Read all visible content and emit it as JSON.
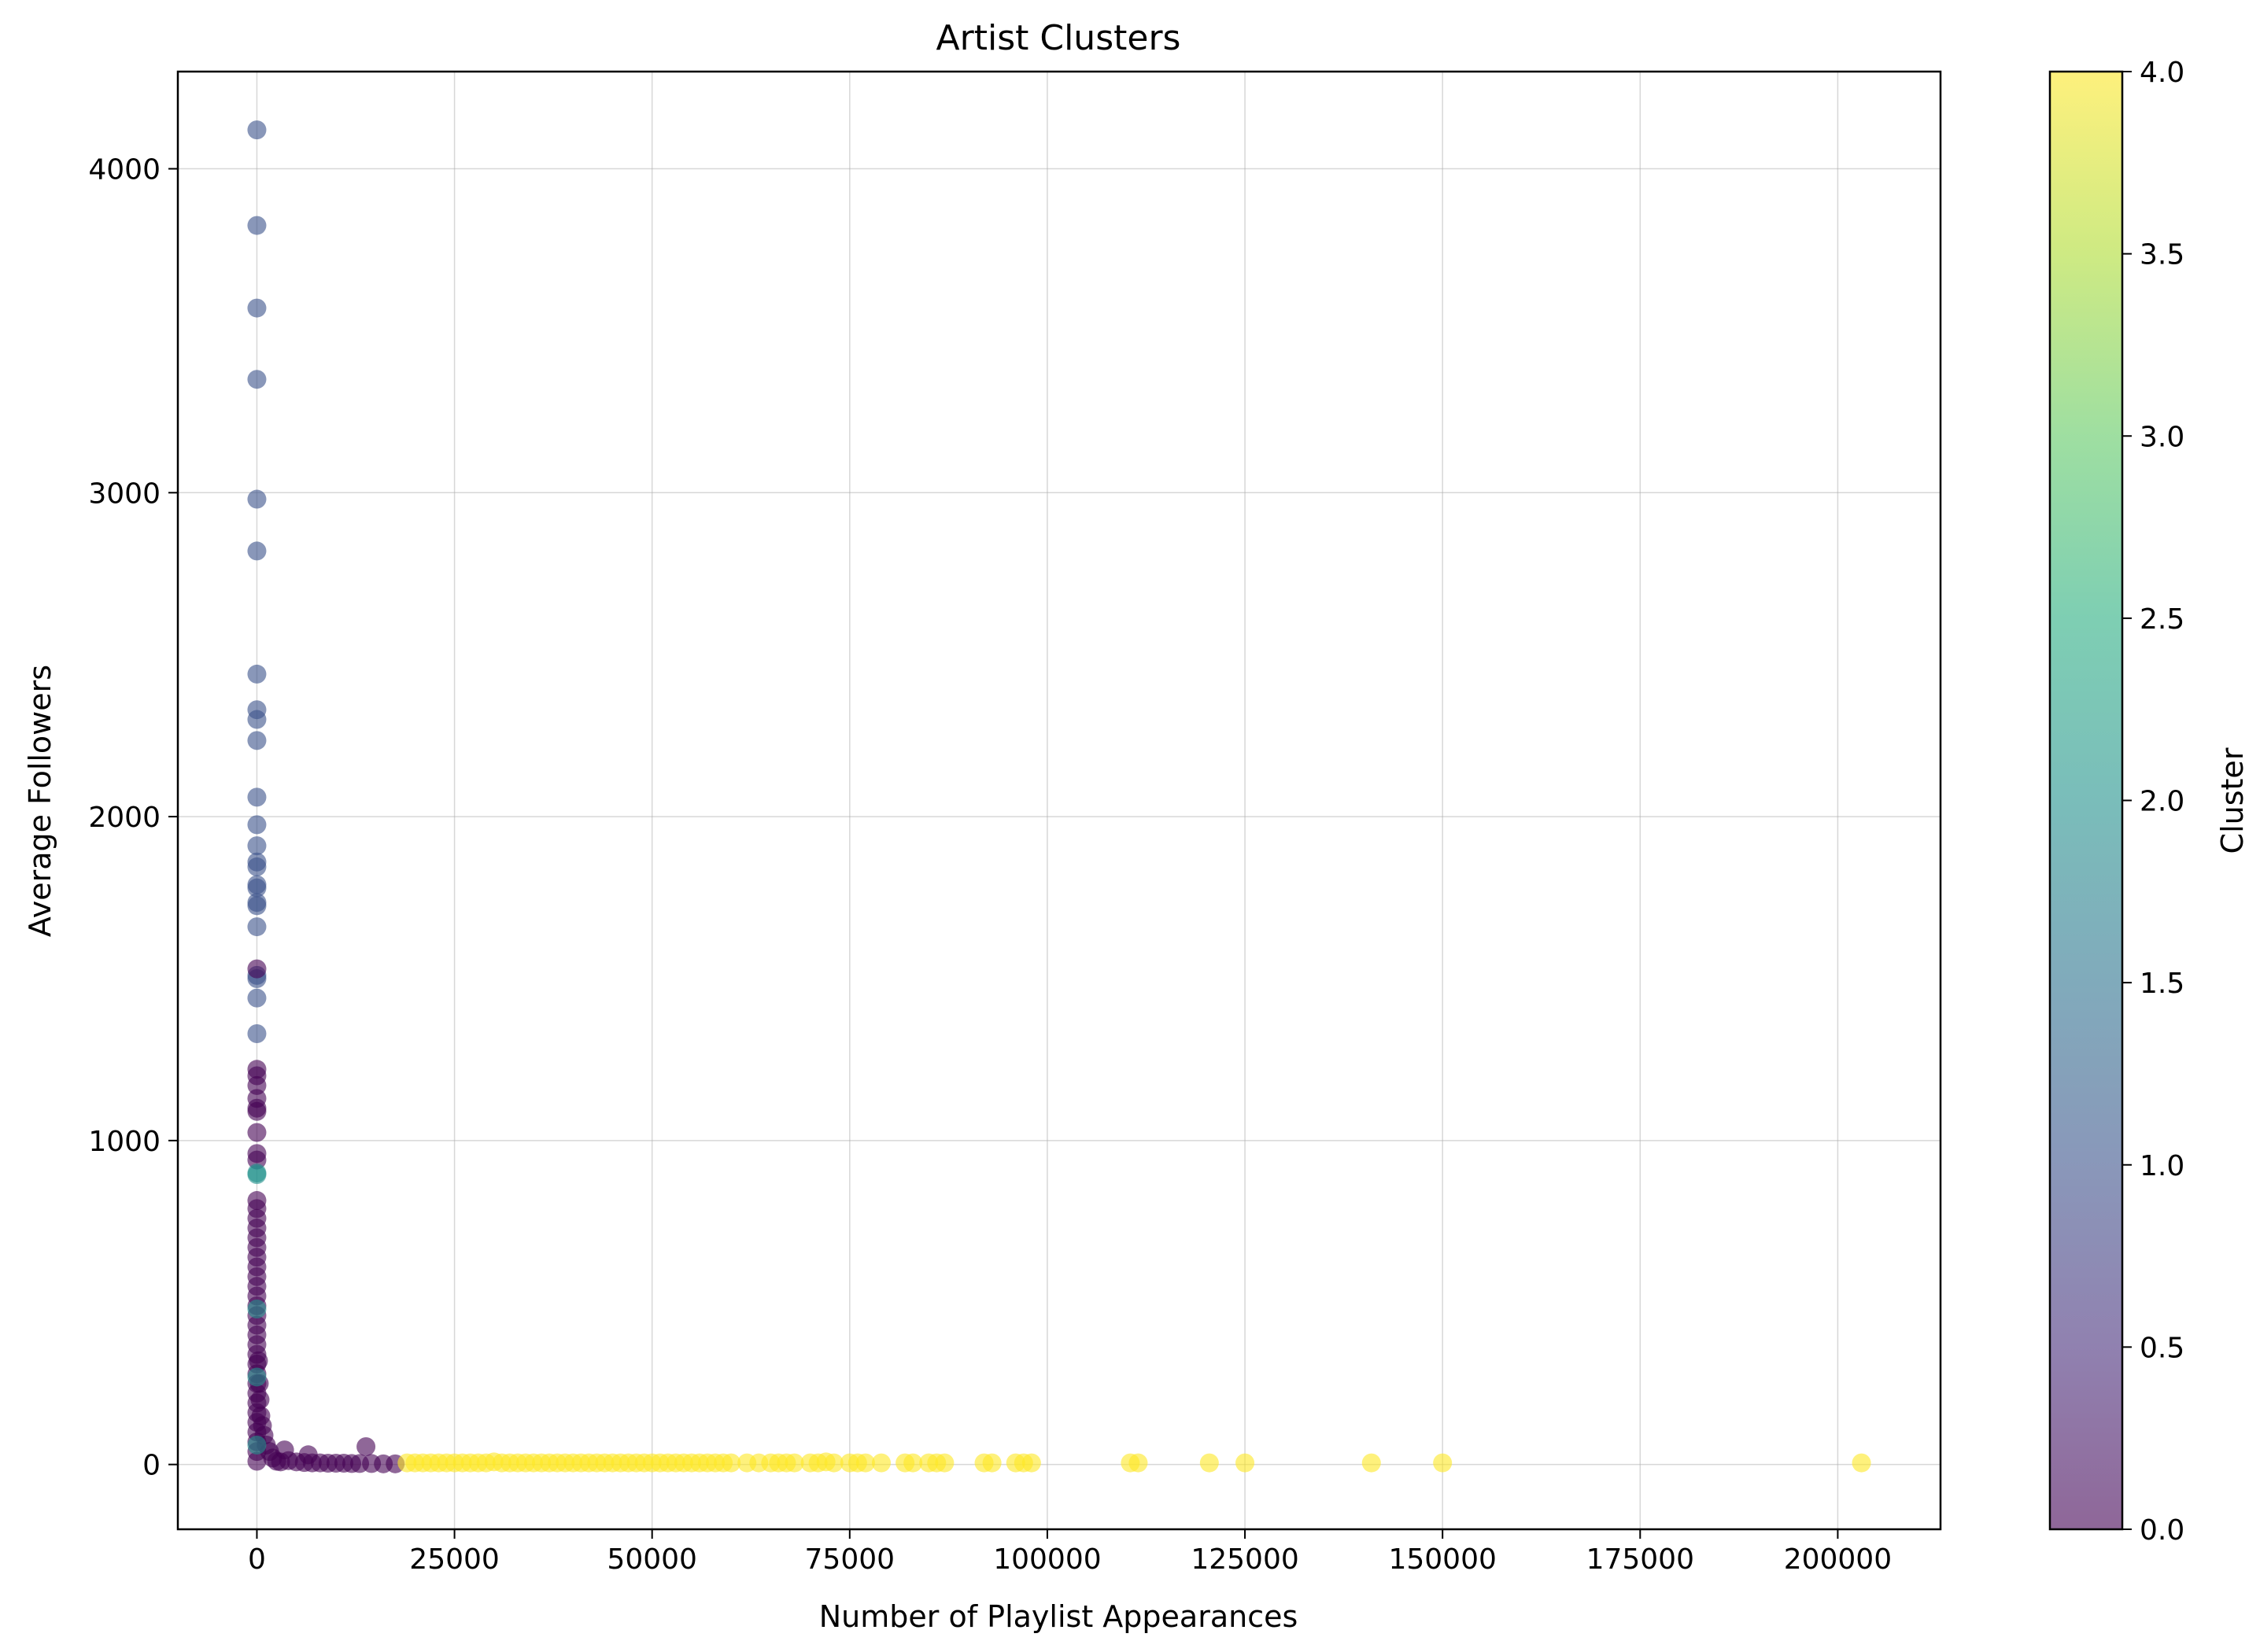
{
  "chart_data": {
    "type": "scatter",
    "title": "Artist Clusters",
    "xlabel": "Number of Playlist Appearances",
    "ylabel": "Average Followers",
    "xlim": [
      -10000,
      213000
    ],
    "ylim": [
      -200,
      4300
    ],
    "xticks": [
      0,
      25000,
      50000,
      75000,
      100000,
      125000,
      150000,
      175000,
      200000
    ],
    "xtick_labels": [
      "0",
      "25000",
      "50000",
      "75000",
      "100000",
      "125000",
      "150000",
      "175000",
      "200000"
    ],
    "yticks": [
      0,
      1000,
      2000,
      3000,
      4000
    ],
    "ytick_labels": [
      "0",
      "1000",
      "2000",
      "3000",
      "4000"
    ],
    "grid": true,
    "colorbar": {
      "label": "Cluster",
      "range": [
        0,
        4
      ],
      "ticks": [
        0.0,
        0.5,
        1.0,
        1.5,
        2.0,
        2.5,
        3.0,
        3.5,
        4.0
      ],
      "tick_labels": [
        "0.0",
        "0.5",
        "1.0",
        "1.5",
        "2.0",
        "2.5",
        "3.0",
        "3.5",
        "4.0"
      ],
      "colormap": "viridis"
    },
    "point_alpha": 0.6,
    "series": [
      {
        "cluster": 1,
        "color": "#3b528b",
        "points": [
          [
            0,
            4120
          ],
          [
            0,
            3825
          ],
          [
            0,
            3570
          ],
          [
            0,
            3350
          ],
          [
            0,
            2980
          ],
          [
            0,
            2820
          ],
          [
            0,
            2440
          ],
          [
            0,
            2330
          ],
          [
            0,
            2300
          ],
          [
            0,
            2235
          ],
          [
            0,
            2060
          ],
          [
            0,
            1975
          ],
          [
            0,
            1910
          ],
          [
            0,
            1860
          ],
          [
            0,
            1845
          ],
          [
            0,
            1790
          ],
          [
            0,
            1780
          ],
          [
            0,
            1735
          ],
          [
            0,
            1725
          ],
          [
            0,
            1660
          ],
          [
            0,
            1510
          ],
          [
            0,
            1500
          ],
          [
            0,
            1440
          ],
          [
            0,
            1330
          ]
        ]
      },
      {
        "cluster": 0,
        "color": "#440154",
        "points": [
          [
            0,
            1530
          ],
          [
            0,
            1220
          ],
          [
            0,
            1200
          ],
          [
            0,
            1170
          ],
          [
            0,
            1130
          ],
          [
            0,
            1100
          ],
          [
            0,
            1090
          ],
          [
            0,
            1025
          ],
          [
            0,
            960
          ],
          [
            0,
            940
          ],
          [
            0,
            815
          ],
          [
            0,
            790
          ],
          [
            0,
            760
          ],
          [
            0,
            730
          ],
          [
            0,
            700
          ],
          [
            0,
            670
          ],
          [
            0,
            640
          ],
          [
            0,
            610
          ],
          [
            0,
            580
          ],
          [
            0,
            550
          ],
          [
            0,
            520
          ],
          [
            0,
            490
          ],
          [
            0,
            460
          ],
          [
            0,
            430
          ],
          [
            0,
            400
          ],
          [
            0,
            370
          ],
          [
            0,
            340
          ],
          [
            0,
            310
          ],
          [
            0,
            280
          ],
          [
            0,
            250
          ],
          [
            0,
            220
          ],
          [
            0,
            190
          ],
          [
            0,
            160
          ],
          [
            0,
            130
          ],
          [
            0,
            100
          ],
          [
            0,
            70
          ],
          [
            0,
            40
          ],
          [
            0,
            10
          ],
          [
            200,
            320
          ],
          [
            300,
            250
          ],
          [
            400,
            200
          ],
          [
            500,
            150
          ],
          [
            700,
            120
          ],
          [
            900,
            90
          ],
          [
            1200,
            60
          ],
          [
            1600,
            40
          ],
          [
            2000,
            20
          ],
          [
            2500,
            10
          ],
          [
            3000,
            8
          ],
          [
            3500,
            45
          ],
          [
            4000,
            12
          ],
          [
            5000,
            8
          ],
          [
            6000,
            6
          ],
          [
            6500,
            30
          ],
          [
            7000,
            5
          ],
          [
            8000,
            5
          ],
          [
            9000,
            4
          ],
          [
            10000,
            4
          ],
          [
            11000,
            4
          ],
          [
            12000,
            3
          ],
          [
            13000,
            3
          ],
          [
            13800,
            55
          ],
          [
            14500,
            3
          ],
          [
            16000,
            2
          ],
          [
            17500,
            2
          ]
        ]
      },
      {
        "cluster": 2,
        "color": "#21918c",
        "points": [
          [
            0,
            900
          ],
          [
            0,
            895
          ],
          [
            0,
            480
          ],
          [
            0,
            270
          ],
          [
            0,
            60
          ]
        ]
      },
      {
        "cluster": 4,
        "color": "#fde725",
        "points": [
          [
            19000,
            5
          ],
          [
            20000,
            5
          ],
          [
            21000,
            5
          ],
          [
            22000,
            5
          ],
          [
            23000,
            5
          ],
          [
            24000,
            5
          ],
          [
            25000,
            5
          ],
          [
            26000,
            5
          ],
          [
            27000,
            5
          ],
          [
            28000,
            5
          ],
          [
            29000,
            5
          ],
          [
            30000,
            8
          ],
          [
            31000,
            5
          ],
          [
            32000,
            5
          ],
          [
            33000,
            5
          ],
          [
            34000,
            5
          ],
          [
            35000,
            5
          ],
          [
            36000,
            5
          ],
          [
            37000,
            5
          ],
          [
            38000,
            5
          ],
          [
            39000,
            5
          ],
          [
            40000,
            5
          ],
          [
            41000,
            5
          ],
          [
            42000,
            5
          ],
          [
            43000,
            5
          ],
          [
            44000,
            5
          ],
          [
            45000,
            5
          ],
          [
            46000,
            5
          ],
          [
            47000,
            5
          ],
          [
            48000,
            5
          ],
          [
            49000,
            5
          ],
          [
            50000,
            5
          ],
          [
            51000,
            5
          ],
          [
            52000,
            5
          ],
          [
            53000,
            5
          ],
          [
            54000,
            5
          ],
          [
            55000,
            5
          ],
          [
            56000,
            5
          ],
          [
            57000,
            5
          ],
          [
            58000,
            5
          ],
          [
            59000,
            5
          ],
          [
            60000,
            5
          ],
          [
            62000,
            5
          ],
          [
            63500,
            5
          ],
          [
            65000,
            5
          ],
          [
            66000,
            5
          ],
          [
            67000,
            5
          ],
          [
            68000,
            5
          ],
          [
            70000,
            5
          ],
          [
            71000,
            5
          ],
          [
            72000,
            8
          ],
          [
            73000,
            5
          ],
          [
            75000,
            5
          ],
          [
            76000,
            5
          ],
          [
            77000,
            5
          ],
          [
            79000,
            5
          ],
          [
            82000,
            5
          ],
          [
            83000,
            5
          ],
          [
            85000,
            5
          ],
          [
            86000,
            5
          ],
          [
            87000,
            5
          ],
          [
            92000,
            5
          ],
          [
            93000,
            5
          ],
          [
            96000,
            5
          ],
          [
            97000,
            5
          ],
          [
            98000,
            5
          ],
          [
            110500,
            5
          ],
          [
            111500,
            5
          ],
          [
            120500,
            5
          ],
          [
            125000,
            5
          ],
          [
            141000,
            5
          ],
          [
            150000,
            5
          ],
          [
            203000,
            5
          ]
        ]
      }
    ]
  }
}
